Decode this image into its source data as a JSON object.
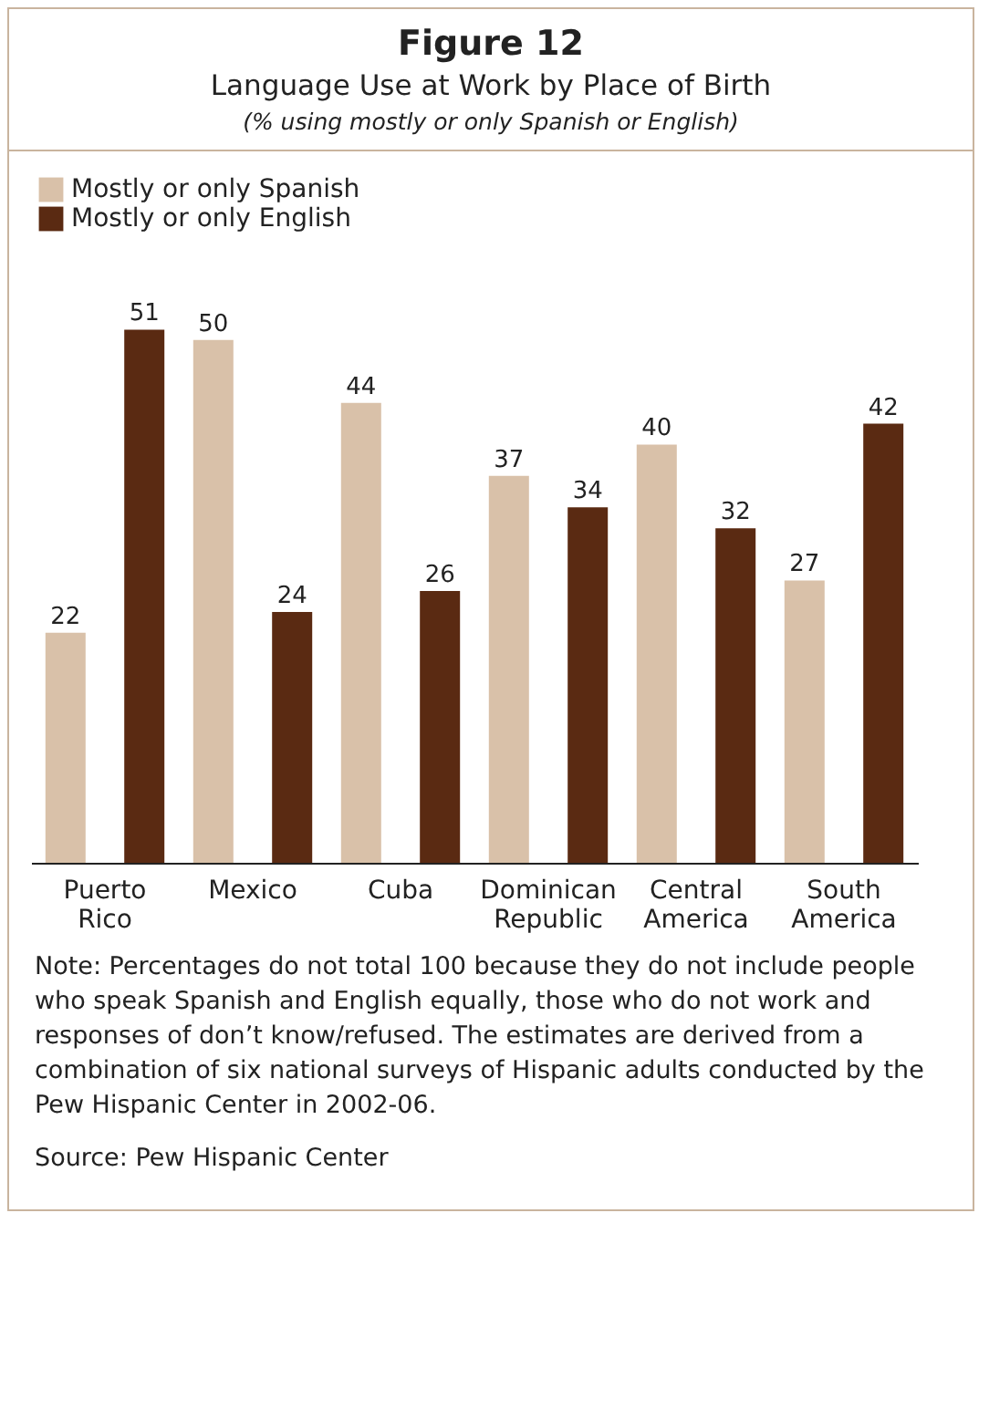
{
  "chart_data": {
    "type": "bar",
    "title": "Figure 12",
    "subtitle": "Language Use at Work by Place of Birth",
    "annotations": [
      "(% using mostly or only Spanish or English)",
      "Note: Percentages do not total 100 because they do not include people who speak Spanish and English equally, those who do not work and responses of don’t know/refused. The estimates are derived from a combination of six national surveys of Hispanic adults conducted by the Pew Hispanic Center in 2002-06.",
      "Source: Pew Hispanic Center"
    ],
    "categories": [
      "Puerto Rico",
      "Mexico",
      "Cuba",
      "Dominican Republic",
      "Central America",
      "South America"
    ],
    "series": [
      {
        "name": "Mostly or only Spanish",
        "color": "#d9c1a9",
        "values": [
          22,
          50,
          44,
          37,
          40,
          27
        ]
      },
      {
        "name": "Mostly or only English",
        "color": "#5a2a12",
        "values": [
          51,
          24,
          26,
          34,
          32,
          42
        ]
      }
    ],
    "data_labels": true,
    "legend": "top left",
    "grid": false
  }
}
